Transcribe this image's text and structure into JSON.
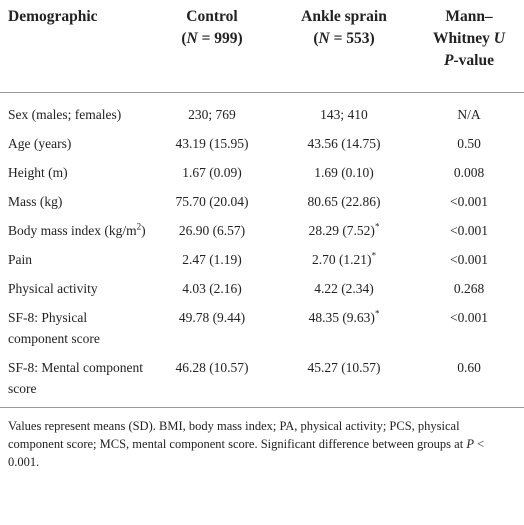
{
  "table": {
    "header": [
      [
        [
          "Demographic"
        ]
      ],
      [
        [
          "Control"
        ],
        [
          "(",
          {
            "text": "N",
            "style": "italic"
          },
          " = 999)"
        ]
      ],
      [
        [
          "Ankle sprain"
        ],
        [
          "(",
          {
            "text": "N",
            "style": "italic"
          },
          " = 553)"
        ]
      ],
      [
        [
          "Mann–"
        ],
        [
          "Whitney ",
          {
            "text": "U",
            "style": "italic"
          }
        ],
        [
          {
            "text": "P",
            "style": "italic"
          },
          "-value"
        ]
      ]
    ],
    "rows": [
      [
        [
          "Sex (males; females)"
        ],
        [
          "230; 769"
        ],
        [
          "143; 410"
        ],
        [
          "N/A"
        ]
      ],
      [
        [
          "Age (years)"
        ],
        [
          "43.19 (15.95)"
        ],
        [
          "43.56 (14.75)"
        ],
        [
          "0.50"
        ]
      ],
      [
        [
          "Height (m)"
        ],
        [
          "1.67 (0.09)"
        ],
        [
          "1.69 (0.10)"
        ],
        [
          "0.008"
        ]
      ],
      [
        [
          "Mass (kg)"
        ],
        [
          "75.70 (20.04)"
        ],
        [
          "80.65 (22.86)"
        ],
        [
          "<0.001"
        ]
      ],
      [
        [
          "Body mass index (kg/m",
          {
            "text": "2",
            "style": "sup"
          },
          ")"
        ],
        [
          "26.90 (6.57)"
        ],
        [
          "28.29 (7.52)",
          {
            "text": "*",
            "style": "sup"
          }
        ],
        [
          "<0.001"
        ]
      ],
      [
        [
          "Pain"
        ],
        [
          "2.47 (1.19)"
        ],
        [
          "2.70 (1.21)",
          {
            "text": "*",
            "style": "sup"
          }
        ],
        [
          "<0.001"
        ]
      ],
      [
        [
          "Physical activity"
        ],
        [
          "4.03 (2.16)"
        ],
        [
          "4.22 (2.34)"
        ],
        [
          "0.268"
        ]
      ],
      [
        [
          "SF-8: Physical component score"
        ],
        [
          "49.78 (9.44)"
        ],
        [
          "48.35 (9.63)",
          {
            "text": "*",
            "style": "sup"
          }
        ],
        [
          "<0.001"
        ]
      ],
      [
        [
          "SF-8: Mental component score"
        ],
        [
          "46.28 (10.57)"
        ],
        [
          "45.27 (10.57)"
        ],
        [
          "0.60"
        ]
      ]
    ]
  },
  "footnote": [
    "Values represent means (SD). BMI, body mass index; PA, physical activity; PCS, physical component score; MCS, mental component score. Significant difference between groups at ",
    {
      "text": "P",
      "style": "italic"
    },
    " < 0.001."
  ]
}
